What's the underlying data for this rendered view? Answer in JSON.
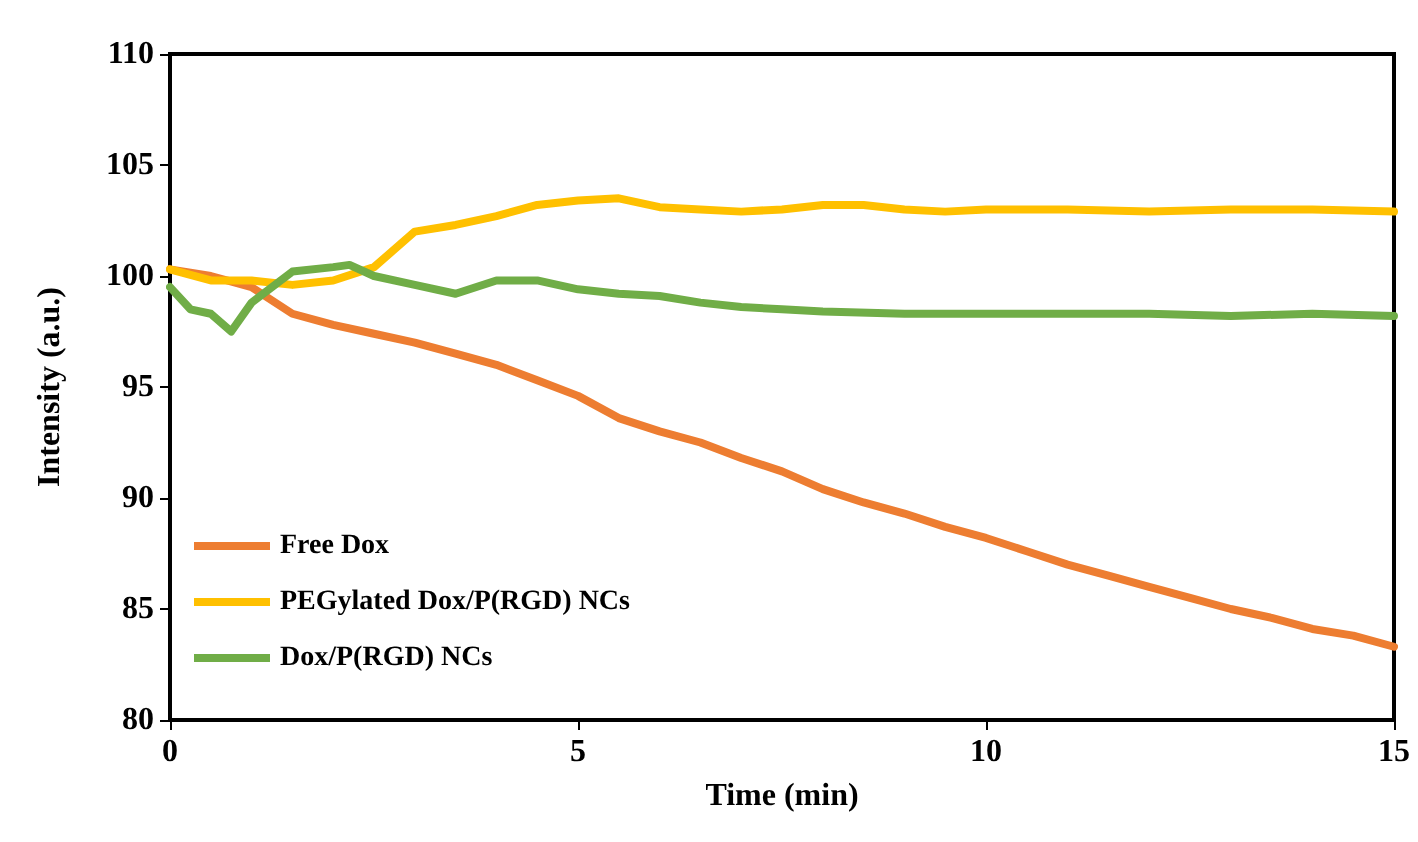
{
  "chart_data": {
    "type": "line",
    "xlabel": "Time (min)",
    "ylabel": "Intensity (a.u.)",
    "xlim": [
      0,
      15
    ],
    "xticks": [
      0,
      5,
      10,
      15
    ],
    "ylim": [
      80,
      110
    ],
    "yticks": [
      80,
      85,
      90,
      95,
      100,
      105,
      110
    ],
    "grid": false,
    "legend": "bottom left",
    "marker": "none",
    "line_style": "solid",
    "series": [
      {
        "name": "Free Dox",
        "color": "#ed7d31",
        "x": [
          0,
          0.5,
          1,
          1.5,
          2,
          2.5,
          3,
          3.5,
          4,
          4.5,
          5,
          5.5,
          6,
          6.5,
          7,
          7.5,
          8,
          8.5,
          9,
          9.5,
          10,
          10.5,
          11,
          11.5,
          12,
          12.5,
          13,
          13.5,
          14,
          14.5,
          15
        ],
        "values": [
          100.3,
          100,
          99.5,
          98.3,
          97.8,
          97.4,
          97,
          96.5,
          96,
          95.3,
          94.6,
          93.6,
          93,
          92.5,
          91.8,
          91.2,
          90.4,
          89.8,
          89.3,
          88.7,
          88.2,
          87.6,
          87,
          86.5,
          86,
          85.5,
          85,
          84.6,
          84.1,
          83.8,
          83.3
        ]
      },
      {
        "name": "PEGylated Dox/P(RGD) NCs",
        "color": "#ffc000",
        "x": [
          0,
          0.5,
          1,
          1.5,
          2,
          2.5,
          3,
          3.5,
          4,
          4.5,
          5,
          5.5,
          6,
          6.5,
          7,
          7.5,
          8,
          8.5,
          9,
          9.5,
          10,
          11,
          12,
          13,
          14,
          15
        ],
        "values": [
          100.3,
          99.8,
          99.8,
          99.6,
          99.8,
          100.4,
          102,
          102.3,
          102.7,
          103.2,
          103.4,
          103.5,
          103.1,
          103,
          102.9,
          103,
          103.2,
          103.2,
          103,
          102.9,
          103,
          103,
          102.9,
          103,
          103,
          102.9
        ]
      },
      {
        "name": "Dox/P(RGD) NCs",
        "color": "#70ad47",
        "x": [
          0,
          0.25,
          0.5,
          0.75,
          1,
          1.5,
          2,
          2.2,
          2.5,
          3,
          3.5,
          4,
          4.5,
          5,
          5.5,
          6,
          6.5,
          7,
          7.5,
          8,
          9,
          10,
          11,
          12,
          13,
          14,
          15
        ],
        "values": [
          99.5,
          98.5,
          98.3,
          97.5,
          98.8,
          100.2,
          100.4,
          100.5,
          100,
          99.6,
          99.2,
          99.8,
          99.8,
          99.4,
          99.2,
          99.1,
          98.8,
          98.6,
          98.5,
          98.4,
          98.3,
          98.3,
          98.3,
          98.3,
          98.2,
          98.3,
          98.2
        ]
      }
    ]
  }
}
